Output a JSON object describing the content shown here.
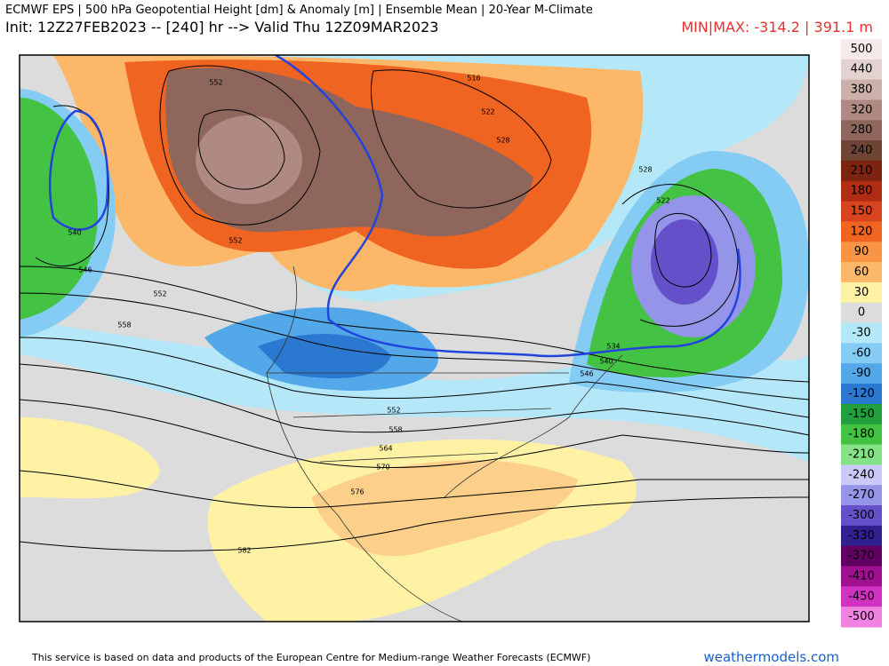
{
  "header": {
    "title": "ECMWF EPS | 500 hPa Geopotential Height [dm] & Anomaly [m] | Ensemble Mean | 20-Year M-Climate",
    "init": "Init: 12Z27FEB2023 -- [240] hr --> Valid Thu 12Z09MAR2023",
    "minmax": "MIN|MAX: -314.2 | 391.1 m"
  },
  "colorbar": {
    "levels": [
      {
        "label": 500,
        "color": "#f6eaea"
      },
      {
        "label": 440,
        "color": "#e4d2d0"
      },
      {
        "label": 380,
        "color": "#ccb0aa"
      },
      {
        "label": 320,
        "color": "#ae8a82"
      },
      {
        "label": 280,
        "color": "#8e665c"
      },
      {
        "label": 240,
        "color": "#6e4434"
      },
      {
        "label": 210,
        "color": "#7c2410"
      },
      {
        "label": 180,
        "color": "#b02c12"
      },
      {
        "label": 150,
        "color": "#d84420"
      },
      {
        "label": 120,
        "color": "#f06422"
      },
      {
        "label": 90,
        "color": "#f89444"
      },
      {
        "label": 60,
        "color": "#fcb868"
      },
      {
        "label": 30,
        "color": "#fff2a4"
      },
      {
        "label": 0,
        "color": "#dcdcdc"
      },
      {
        "label": -30,
        "color": "#b4e8f8"
      },
      {
        "label": -60,
        "color": "#84ccf4"
      },
      {
        "label": -90,
        "color": "#52a8e8"
      },
      {
        "label": -120,
        "color": "#2a78d0"
      },
      {
        "label": -150,
        "color": "#22a040"
      },
      {
        "label": -180,
        "color": "#44c244"
      },
      {
        "label": -210,
        "color": "#86e286"
      },
      {
        "label": -240,
        "color": "#cacaf8"
      },
      {
        "label": -270,
        "color": "#9494e8"
      },
      {
        "label": -300,
        "color": "#6450c8"
      },
      {
        "label": -330,
        "color": "#302090"
      },
      {
        "label": -370,
        "color": "#620062"
      },
      {
        "label": -410,
        "color": "#a21092"
      },
      {
        "label": -450,
        "color": "#d232c2"
      },
      {
        "label": -500,
        "color": "#f282e2"
      }
    ]
  },
  "contour_labels": [
    "552",
    "558",
    "540",
    "546",
    "552",
    "552",
    "516",
    "522",
    "528",
    "528",
    "522",
    "534",
    "540",
    "546",
    "552",
    "558",
    "564",
    "570",
    "576",
    "582"
  ],
  "footer": {
    "credit": "This service is based on data and products of the European Centre for Medium-range Weather Forecasts (ECMWF)",
    "site": "weathermodels.com"
  }
}
